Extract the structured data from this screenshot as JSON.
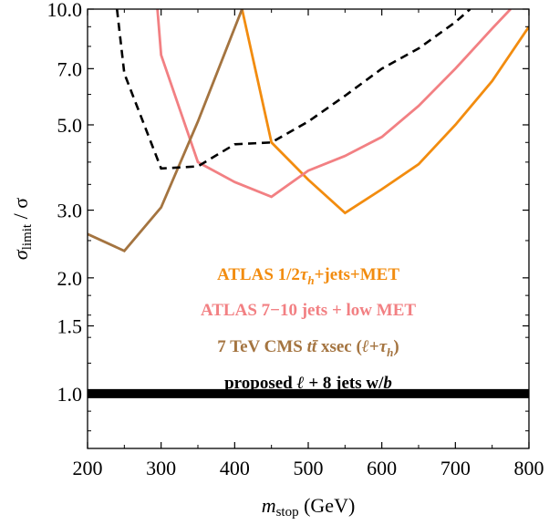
{
  "chart_data": {
    "type": "line",
    "title": "",
    "xlabel": "m_stop (GeV)",
    "xlabel_main": "m",
    "xlabel_sub": "stop",
    "xlabel_unit": " (GeV)",
    "ylabel": "σ_limit / σ",
    "ylabel_main": "σ",
    "ylabel_sub": "limit",
    "ylabel_rest": " / σ",
    "xlim": [
      200,
      800
    ],
    "ylim": [
      0.72,
      10.0
    ],
    "yscale": "log",
    "grid": false,
    "legend_position": "center-bottom",
    "x_ticks": [
      200,
      300,
      400,
      500,
      600,
      700,
      800
    ],
    "x_tick_labels": [
      "200",
      "300",
      "400",
      "500",
      "600",
      "700",
      "800"
    ],
    "y_ticks": [
      1.0,
      1.5,
      2.0,
      3.0,
      5.0,
      7.0,
      10.0
    ],
    "y_tick_labels": [
      "1.0",
      "1.5",
      "2.0",
      "3.0",
      "5.0",
      "7.0",
      "10.0"
    ],
    "series": [
      {
        "name": "ATLAS 1/2τh+jets+MET",
        "color": "#f28c0f",
        "style": "solid",
        "x": [
          410,
          450,
          500,
          550,
          600,
          650,
          700,
          750,
          800
        ],
        "y": [
          10.0,
          4.5,
          3.6,
          2.95,
          3.4,
          3.95,
          5.0,
          6.5,
          9.0
        ]
      },
      {
        "name": "ATLAS 7−10 jets + low MET",
        "color": "#f28083",
        "style": "solid",
        "x": [
          295,
          300,
          350,
          400,
          450,
          500,
          550,
          600,
          650,
          700,
          750,
          775
        ],
        "y": [
          10.0,
          7.6,
          4.0,
          3.55,
          3.25,
          3.8,
          4.15,
          4.65,
          5.6,
          7.0,
          8.9,
          10.0
        ]
      },
      {
        "name": "7 TeV CMS tt̄ xsec (ℓ+τh)",
        "color": "#a47440",
        "style": "solid",
        "x": [
          200,
          250,
          300,
          350,
          410
        ],
        "y": [
          2.6,
          2.35,
          3.05,
          5.1,
          10.0
        ]
      },
      {
        "name": "proposed ℓ + 8 jets w/b",
        "color": "#000000",
        "style": "dashed",
        "x": [
          240,
          250,
          300,
          350,
          400,
          450,
          500,
          550,
          600,
          650,
          700,
          720
        ],
        "y": [
          10.0,
          6.8,
          3.85,
          3.9,
          4.45,
          4.5,
          5.1,
          5.95,
          7.0,
          7.9,
          9.25,
          10.0
        ]
      },
      {
        "name": "reference",
        "color": "#000000",
        "style": "thick",
        "x": [
          200,
          800
        ],
        "y": [
          1.0,
          1.0
        ]
      }
    ],
    "legend": [
      {
        "color": "#f28c0f",
        "parts": [
          {
            "t": "ATLAS 1/2"
          },
          {
            "t": "τ",
            "i": true
          },
          {
            "t": "h",
            "i": true,
            "sub": true
          },
          {
            "t": "+jets+MET"
          }
        ]
      },
      {
        "color": "#f28083",
        "parts": [
          {
            "t": "ATLAS 7−10 jets + low MET"
          }
        ]
      },
      {
        "color": "#a47440",
        "parts": [
          {
            "t": "7 TeV CMS "
          },
          {
            "t": "tt̄",
            "i": true
          },
          {
            "t": " xsec ("
          },
          {
            "t": "ℓ",
            "i": true
          },
          {
            "t": "+"
          },
          {
            "t": "τ",
            "i": true
          },
          {
            "t": "h",
            "i": true,
            "sub": true
          },
          {
            "t": ")"
          }
        ]
      },
      {
        "color": "#000000",
        "parts": [
          {
            "t": "proposed "
          },
          {
            "t": "ℓ",
            "i": true
          },
          {
            "t": " + 8 jets w/"
          },
          {
            "t": "b",
            "i": true
          }
        ]
      }
    ]
  }
}
